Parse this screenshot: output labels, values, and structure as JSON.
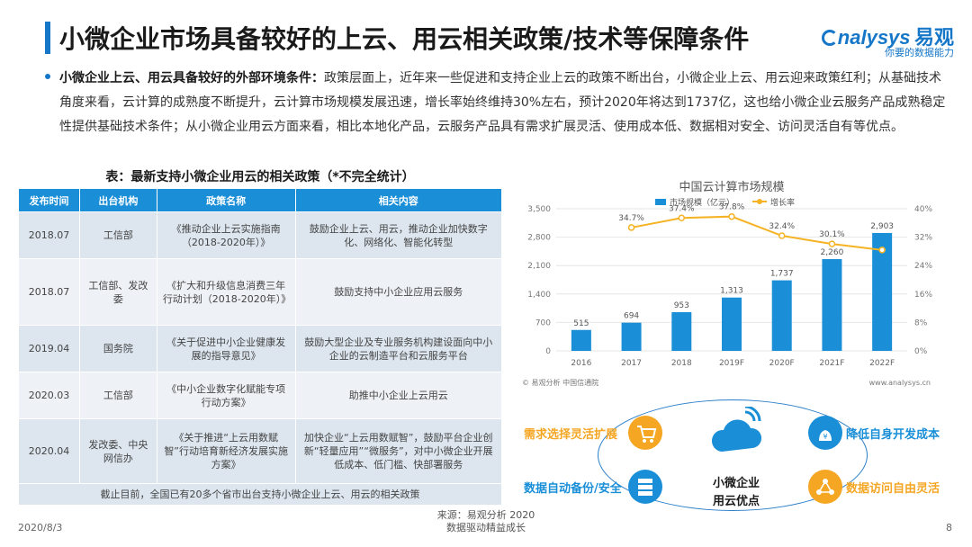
{
  "header": {
    "title": "小微企业市场具备较好的上云、用云相关政策/技术等保障条件",
    "logo_brand": "nalysys",
    "logo_brand_cn": "易观",
    "logo_slogan": "你要的数据能力"
  },
  "intro": {
    "bold": "小微企业上云、用云具备较好的外部环境条件：",
    "text": "政策层面上，近年来一些促进和支持企业上云的政策不断出台，小微企业上云、用云迎来政策红利；从基础技术角度来看，云计算的成熟度不断提升，云计算市场规模发展迅速，增长率始终维持30%左右，预计2020年将达到1737亿，这也给小微企业云服务产品成熟稳定性提供基础技术条件；从小微企业用云方面来看，相比本地化产品，云服务产品具有需求扩展灵活、使用成本低、数据相对安全、访问灵活自有等优点。"
  },
  "table": {
    "caption": "表：最新支持小微企业用云的相关政策（*不完全统计）",
    "headers": [
      "发布时间",
      "出台机构",
      "政策名称",
      "相关内容"
    ],
    "rows": [
      {
        "date": "2018.07",
        "org": "工信部",
        "name": "《推动企业上云实施指南（2018-2020年）》",
        "content": "鼓励企业上云、用云，推动企业加快数字化、网络化、智能化转型"
      },
      {
        "date": "2018.07",
        "org": "工信部、发改委",
        "name": "《扩大和升级信息消费三年行动计划（2018-2020年）》",
        "content": "鼓励支持中小企业应用云服务"
      },
      {
        "date": "2019.04",
        "org": "国务院",
        "name": "《关于促进中小企业健康发展的指导意见》",
        "content": "鼓励大型企业及专业服务机构建设面向中小企业的云制造平台和云服务平台"
      },
      {
        "date": "2020.03",
        "org": "工信部",
        "name": "《中小企业数字化赋能专项行动方案》",
        "content": "助推中小企业上云用云"
      },
      {
        "date": "2020.04",
        "org": "发改委、中央网信办",
        "name": "《关于推进“上云用数赋智”行动培育新经济发展实施方案》",
        "content": "加快企业“上云用数赋智”，鼓励平台企业创新“轻量应用”“微服务”，对中小微企业开展低成本、低门槛、快部署服务"
      }
    ],
    "footnote": "截止目前，全国已有20多个省市出台支持小微企业上云、用云的相关政策"
  },
  "chart_data": {
    "type": "bar",
    "title": "中国云计算市场规模",
    "categories": [
      "2016",
      "2017",
      "2018",
      "2019F",
      "2020F",
      "2021F",
      "2022F"
    ],
    "series": [
      {
        "name": "市场规模（亿元）",
        "type": "bar",
        "values": [
          515,
          694,
          953,
          1313,
          1737,
          2260,
          2903
        ],
        "labels": [
          "515",
          "694",
          "953",
          "1,313",
          "1,737",
          "2,260",
          "2,903"
        ]
      },
      {
        "name": "增长率",
        "type": "line",
        "values": [
          null,
          34.7,
          37.4,
          37.8,
          32.4,
          30.1,
          28.4
        ],
        "labels": [
          "",
          "34.7%",
          "37.4%",
          "37.8%",
          "32.4%",
          "30.1%",
          ""
        ]
      }
    ],
    "ylim": [
      0,
      3500
    ],
    "y_ticks": [
      "0",
      "700",
      "1,400",
      "2,100",
      "2,800",
      "3,500"
    ],
    "y2lim": [
      0,
      40
    ],
    "y2_ticks": [
      "0%",
      "8%",
      "16%",
      "24%",
      "32%",
      "40%"
    ],
    "source": "© 易观分析 中国信通院",
    "website": "www.analysys.cn",
    "colors": {
      "bar": "#1a8fd8",
      "line": "#f5b324",
      "grid": "#e6e6e6"
    }
  },
  "advantages": {
    "center": [
      "小微企业",
      "用云优点"
    ],
    "items": [
      {
        "label": "需求选择灵活扩展",
        "color": "#f5a623",
        "icon": "cart-icon"
      },
      {
        "label": "降低自身开发成本",
        "color": "#1a8fd8",
        "icon": "money-bag-icon"
      },
      {
        "label": "数据自动备份/安全",
        "color": "#1a8fd8",
        "icon": "server-icon"
      },
      {
        "label": "数据访问自由灵活",
        "color": "#f5a623",
        "icon": "network-icon"
      }
    ]
  },
  "footer": {
    "date": "2020/8/3",
    "source": "来源：易观分析 2020",
    "tagline": "数据驱动精益成长",
    "page": "8"
  }
}
